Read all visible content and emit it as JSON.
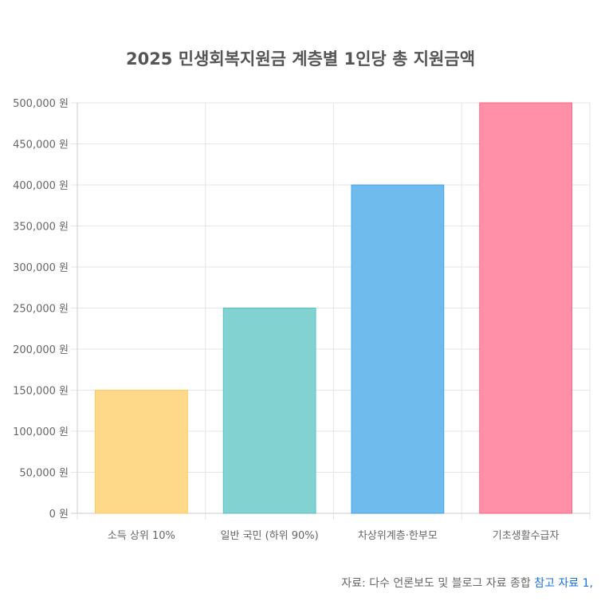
{
  "chart_data": {
    "type": "bar",
    "title": "2025 민생회복지원금 계층별 1인당 총 지원금액",
    "categories": [
      "소득 상위 10%",
      "일반 국민 (하위 90%)",
      "차상위계층·한부모",
      "기초생활수급자"
    ],
    "values": [
      150000,
      250000,
      400000,
      500000
    ],
    "ylim": [
      0,
      500000
    ],
    "y_tick_step": 50000,
    "y_tick_suffix": " 원",
    "grid": true,
    "legend": "none",
    "colors": [
      "#FFD98A",
      "#82D2D2",
      "#70BBEE",
      "#FF90A8"
    ],
    "border_colors": [
      "#FFC95C",
      "#55C1C1",
      "#45A5E8",
      "#FF6384"
    ]
  },
  "source": {
    "prefix": "자료: 다수 언론보도 및 블로그 자료 종합",
    "link_label": "참고 자료 1,"
  }
}
